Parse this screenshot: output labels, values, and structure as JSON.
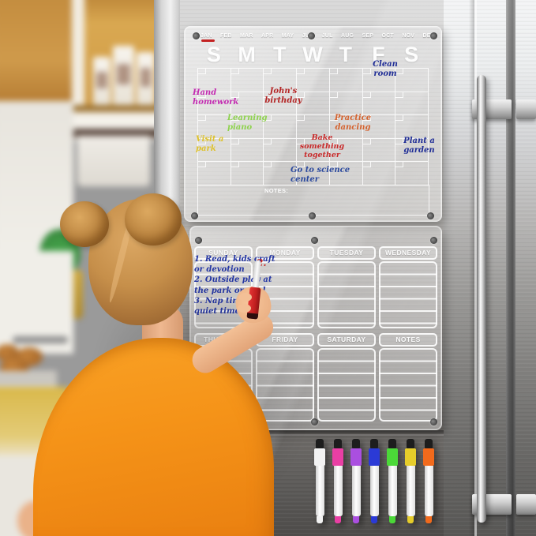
{
  "monthly_board": {
    "months": [
      "JAN",
      "FEB",
      "MAR",
      "APR",
      "MAY",
      "JUN",
      "JUL",
      "AUG",
      "SEP",
      "OCT",
      "NOV",
      "DEC"
    ],
    "active_month": "JAN",
    "active_month_underline_color": "#c32222",
    "day_headers": [
      "S",
      "M",
      "T",
      "W",
      "T",
      "F",
      "S"
    ],
    "notes_label": "NOTES:",
    "entries": [
      {
        "name": "clean-room",
        "lines": [
          "Clean",
          "room"
        ],
        "color": "#1f2d96"
      },
      {
        "name": "hand-homework",
        "lines": [
          "Hand",
          "homework"
        ],
        "color": "#c32bb1"
      },
      {
        "name": "johns-birthday",
        "lines": [
          "John's",
          "birthday"
        ],
        "color": "#b32424"
      },
      {
        "name": "learning-piano",
        "lines": [
          "Learning",
          "piano"
        ],
        "color": "#8ed24e"
      },
      {
        "name": "practice-dancing",
        "lines": [
          "Practice",
          "dancing"
        ],
        "color": "#d4622e"
      },
      {
        "name": "visit-a-park",
        "lines": [
          "Visit a",
          "park"
        ],
        "color": "#dec22d"
      },
      {
        "name": "bake-something-together",
        "lines": [
          "Bake",
          "something",
          "together"
        ],
        "color": "#c92a2a"
      },
      {
        "name": "plant-a-garden",
        "lines": [
          "Plant a",
          "garden"
        ],
        "color": "#1f2d96"
      },
      {
        "name": "go-to-science-center",
        "lines": [
          "Go to science",
          "center"
        ],
        "color": "#2c4a9e"
      }
    ]
  },
  "weekly_board": {
    "day_sections": [
      "SUNDAY",
      "MONDAY",
      "TUESDAY",
      "WEDNESDAY",
      "THURSDAY",
      "FRIDAY",
      "SATURDAY",
      "NOTES"
    ],
    "sunday_entry_lines": [
      "1. Read, kids craft",
      "or devotion",
      "2. Outside play at",
      "the park or pool",
      "3. Nap time and",
      "quiet time"
    ],
    "sunday_entry_color": "#2436a4",
    "monday_entry": "2.",
    "monday_entry_color": "#c22323"
  },
  "markers": [
    {
      "name": "white",
      "color": "#f2f2f2"
    },
    {
      "name": "pink",
      "color": "#ea3fa4"
    },
    {
      "name": "purple",
      "color": "#aa4fe0"
    },
    {
      "name": "blue",
      "color": "#2b3ad6"
    },
    {
      "name": "green",
      "color": "#4bd838"
    },
    {
      "name": "yellow",
      "color": "#e6cd2a"
    },
    {
      "name": "orange",
      "color": "#f26a1c"
    }
  ]
}
